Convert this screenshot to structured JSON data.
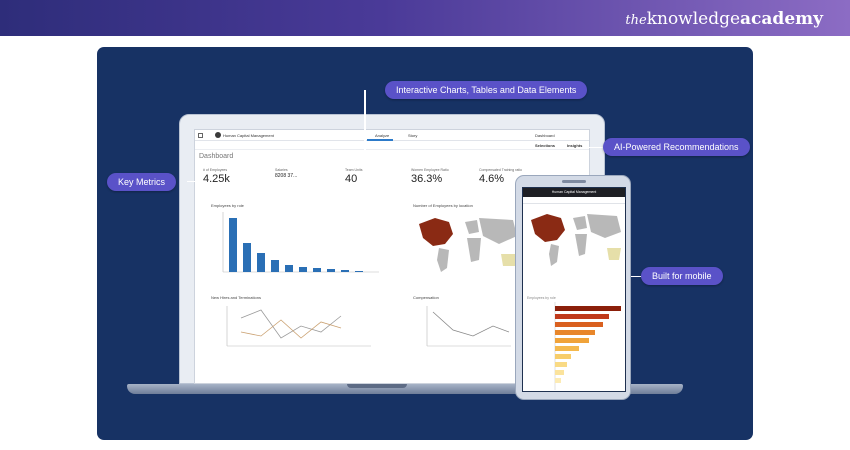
{
  "brand": {
    "the": "the",
    "knowledge": "knowledge",
    "academy": "academy"
  },
  "callouts": {
    "interactive": "Interactive Charts, Tables and Data Elements",
    "ai": "AI-Powered Recommendations",
    "key_metrics": "Key Metrics",
    "mobile": "Built for mobile"
  },
  "app": {
    "name": "Human Capital Management",
    "tabs": [
      "Analyze",
      "Story"
    ],
    "sheet": "Dashboard",
    "toolbar": {
      "selections": "Selections",
      "insights": "Insights"
    },
    "page_title": "Dashboard"
  },
  "kpis": [
    {
      "label": "# of Employees",
      "value": "4.25k"
    },
    {
      "label": "Salaries",
      "value": "8208 37..."
    },
    {
      "label": "Team Units",
      "value": "40"
    },
    {
      "label": "Women Employee Ratio",
      "value": "36.3%"
    },
    {
      "label": "Compensated Training ratio",
      "value": "4.6%"
    }
  ],
  "panels": {
    "headcount": "Employees by role",
    "map": "Number of Employees by location",
    "hires": "New Hires and Terminations",
    "compensation": "Compensation",
    "phone_chart": "Employees by role"
  },
  "colors": {
    "accent": "#5a52c8",
    "stage": "#173264",
    "bar_blue": "#2a6fb5",
    "map_highlight": "#8a2a14",
    "map_land": "#b8b8b8"
  }
}
